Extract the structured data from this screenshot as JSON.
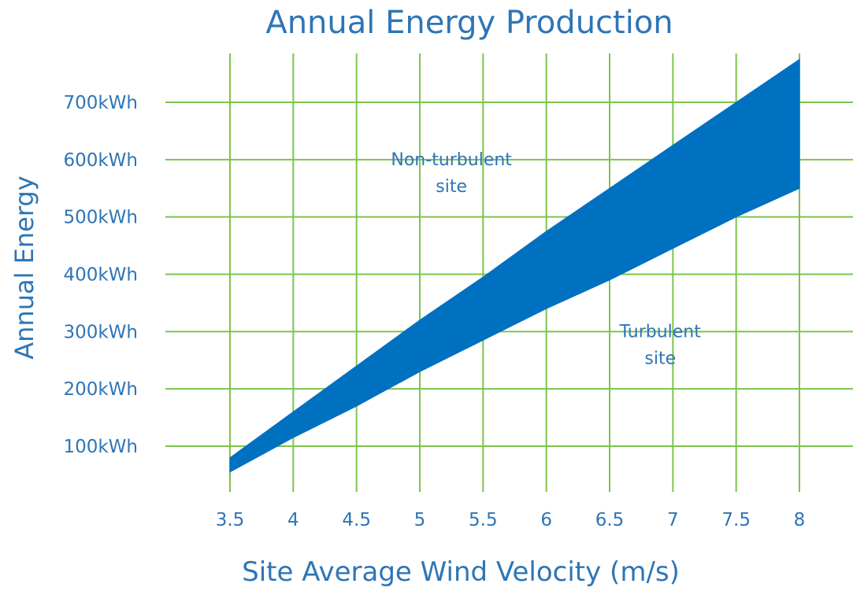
{
  "chart_data": {
    "type": "area",
    "title": "Annual Energy Production",
    "xlabel": "Site Average Wind Velocity (m/s)",
    "ylabel": "Annual Energy",
    "x_ticks": [
      "3.5",
      "4",
      "4.5",
      "5",
      "5.5",
      "6",
      "6.5",
      "7",
      "7.5",
      "8"
    ],
    "y_ticks": [
      {
        "value": 100,
        "label": "100kWh"
      },
      {
        "value": 200,
        "label": "200kWh"
      },
      {
        "value": 300,
        "label": "300kWh"
      },
      {
        "value": 400,
        "label": "400kWh"
      },
      {
        "value": 500,
        "label": "500kWh"
      },
      {
        "value": 600,
        "label": "600kWh"
      },
      {
        "value": 700,
        "label": "700kWh"
      }
    ],
    "xlim": [
      3.0,
      8.4
    ],
    "ylim": [
      40,
      780
    ],
    "grid": true,
    "series": [
      {
        "x": [
          3.5,
          4.0,
          4.5,
          5.0,
          5.5,
          6.0,
          6.5,
          7.0,
          7.5,
          8.0
        ],
        "upper": [
          80,
          160,
          240,
          320,
          395,
          475,
          550,
          625,
          700,
          775
        ],
        "lower": [
          55,
          115,
          170,
          230,
          285,
          340,
          390,
          445,
          500,
          550
        ]
      }
    ],
    "band_color": "#0070c0",
    "annotations": [
      {
        "lines": [
          "Non-turbulent",
          "site"
        ],
        "x": 5.25,
        "y": 590
      },
      {
        "lines": [
          "Turbulent",
          "site"
        ],
        "x": 6.9,
        "y": 290
      }
    ]
  }
}
